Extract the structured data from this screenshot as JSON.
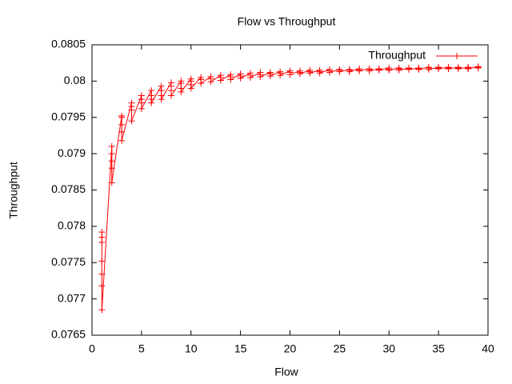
{
  "chart_data": {
    "type": "line",
    "title": "Flow vs Throughput",
    "x_label": "Flow",
    "y_label": "Throughput",
    "legend": "top-right",
    "xlim": [
      0,
      40
    ],
    "xticks": [
      0,
      5,
      10,
      15,
      20,
      25,
      30,
      35,
      40
    ],
    "ylim": [
      0.0765,
      0.0805
    ],
    "yticks": [
      0.0765,
      0.077,
      0.0775,
      0.078,
      0.0785,
      0.079,
      0.0795,
      0.08,
      0.0805
    ],
    "x": [
      1,
      1,
      1,
      1,
      1,
      1,
      1,
      2,
      2,
      2,
      2,
      2,
      3,
      3,
      3,
      3,
      3,
      4,
      4,
      4,
      4,
      5,
      5,
      5,
      5,
      6,
      6,
      6,
      6,
      7,
      7,
      7,
      7,
      8,
      8,
      8,
      8,
      9,
      9,
      9,
      9,
      10,
      10,
      10,
      10,
      11,
      11,
      11,
      12,
      12,
      12,
      13,
      13,
      13,
      14,
      14,
      14,
      15,
      15,
      15,
      16,
      16,
      16,
      17,
      17,
      17,
      18,
      18,
      18,
      19,
      19,
      19,
      20,
      20,
      20,
      21,
      21,
      21,
      22,
      22,
      22,
      23,
      23,
      23,
      24,
      24,
      24,
      25,
      25,
      25,
      26,
      26,
      26,
      27,
      27,
      27,
      28,
      28,
      28,
      29,
      29,
      29,
      30,
      30,
      30,
      31,
      31,
      31,
      32,
      32,
      32,
      33,
      33,
      33,
      34,
      34,
      34,
      35,
      35,
      35,
      36,
      36,
      36,
      37,
      37,
      37,
      38,
      38,
      38,
      39,
      39,
      39
    ],
    "series": [
      {
        "name": "Throughput",
        "color": "#ff0000",
        "values": [
          0.07792,
          0.07785,
          0.07778,
          0.07752,
          0.07734,
          0.07718,
          0.07685,
          0.0791,
          0.079,
          0.0789,
          0.0788,
          0.0786,
          0.07952,
          0.0795,
          0.0794,
          0.0793,
          0.07918,
          0.0797,
          0.07965,
          0.0796,
          0.07945,
          0.0798,
          0.07975,
          0.0797,
          0.07962,
          0.07987,
          0.0798,
          0.07975,
          0.0797,
          0.07993,
          0.07987,
          0.0798,
          0.07975,
          0.07998,
          0.07993,
          0.07987,
          0.0798,
          0.08,
          0.07997,
          0.0799,
          0.07985,
          0.08003,
          0.08,
          0.07995,
          0.0799,
          0.08005,
          0.08002,
          0.07997,
          0.08006,
          0.08003,
          0.07999,
          0.08008,
          0.08005,
          0.08001,
          0.08009,
          0.08006,
          0.08002,
          0.0801,
          0.08007,
          0.08004,
          0.08011,
          0.08008,
          0.08005,
          0.08012,
          0.08009,
          0.08006,
          0.08012,
          0.0801,
          0.08007,
          0.08013,
          0.08011,
          0.08008,
          0.08014,
          0.08012,
          0.08009,
          0.08014,
          0.08012,
          0.0801,
          0.08015,
          0.08013,
          0.08011,
          0.08015,
          0.08013,
          0.08011,
          0.08016,
          0.08014,
          0.08012,
          0.08016,
          0.08015,
          0.08013,
          0.08016,
          0.08015,
          0.08013,
          0.08017,
          0.08015,
          0.08014,
          0.08017,
          0.08016,
          0.08014,
          0.08017,
          0.08016,
          0.08015,
          0.08018,
          0.08016,
          0.08015,
          0.08018,
          0.08017,
          0.08015,
          0.08018,
          0.08017,
          0.08016,
          0.08018,
          0.08017,
          0.08016,
          0.08019,
          0.08018,
          0.08016,
          0.08019,
          0.08018,
          0.08017,
          0.08019,
          0.08018,
          0.08017,
          0.08019,
          0.08018,
          0.08017,
          0.08019,
          0.08018,
          0.08017,
          0.0802,
          0.08019,
          0.08018
        ]
      }
    ]
  }
}
